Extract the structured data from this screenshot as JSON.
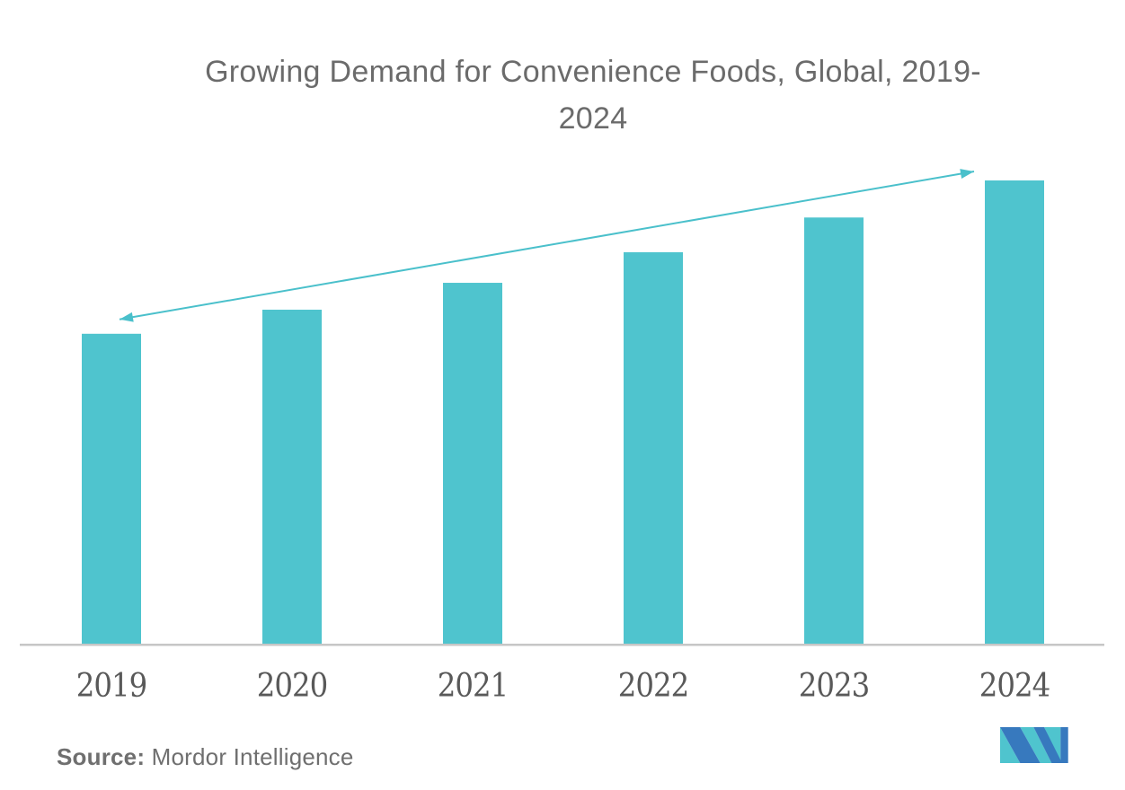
{
  "title": {
    "line1": "Growing Demand for Convenience Foods, Global, 2019-",
    "line2": "2024",
    "full": "Growing Demand for Convenience Foods, Global, 2019-2024"
  },
  "chart_data": {
    "type": "bar",
    "title": "Growing Demand for Convenience Foods, Global, 2019-2024",
    "categories": [
      "2019",
      "2020",
      "2021",
      "2022",
      "2023",
      "2024"
    ],
    "values": [
      66.9,
      72.1,
      77.9,
      84.5,
      92.0,
      100
    ],
    "value_basis": "relative index, 2024 = 100; y-axis is unlabeled, values estimated from bar heights",
    "ylim": [
      0,
      100
    ],
    "xlabel": "",
    "ylabel": "",
    "gridlines": false,
    "legend": false,
    "bar_color": "#4fc4ce",
    "trend_arrow": {
      "present": true,
      "direction": "up",
      "double_headed": true,
      "from_category": "2019",
      "to_category": "2024",
      "color": "#4fc4ce"
    },
    "source": "Mordor Intelligence"
  },
  "footer": {
    "source_label": "Source:",
    "source_text": " Mordor Intelligence"
  },
  "colors": {
    "bar_teal": "#4fc4ce",
    "arrow_teal": "#4ac0cb",
    "axis_gray": "#c6c6c6",
    "title_gray": "#6b6b6b",
    "year_label_gray": "#595959",
    "source_gray": "#6f6f6f",
    "logo_blue": "#3779be",
    "logo_teal": "#4fc4ce"
  }
}
